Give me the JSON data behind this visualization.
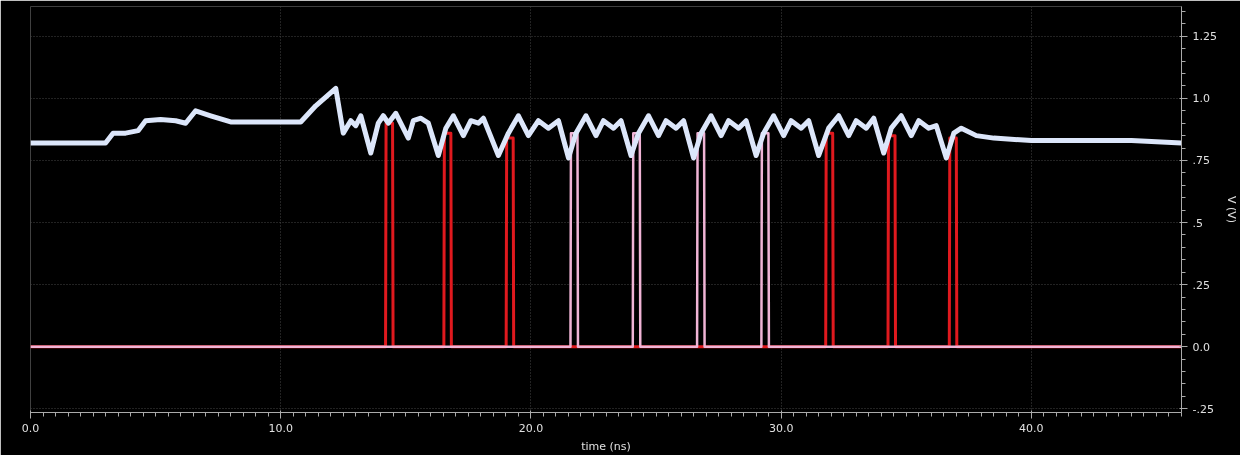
{
  "chart_data": {
    "type": "line",
    "xlabel": "time (ns)",
    "ylabel": "V (V)",
    "xlim": [
      0,
      46
    ],
    "ylim": [
      -0.265,
      1.37
    ],
    "xticks": [
      {
        "value": 0,
        "label": "0.0"
      },
      {
        "value": 10,
        "label": "10.0"
      },
      {
        "value": 20,
        "label": "20.0"
      },
      {
        "value": 30,
        "label": "30.0"
      },
      {
        "value": 40,
        "label": "40.0"
      }
    ],
    "yticks": [
      {
        "value": -0.25,
        "label": "-.25"
      },
      {
        "value": 0,
        "label": "0.0"
      },
      {
        "value": 0.25,
        "label": ".25"
      },
      {
        "value": 0.5,
        "label": ".5"
      },
      {
        "value": 0.75,
        "label": ".75"
      },
      {
        "value": 1.0,
        "label": "1.0"
      },
      {
        "value": 1.25,
        "label": "1.25"
      }
    ],
    "grid": true,
    "series": [
      {
        "color": "#e0191e",
        "x": [
          0,
          14.19,
          14.21,
          14.47,
          14.49,
          16.52,
          16.54,
          16.8,
          16.82,
          19.01,
          19.03,
          19.29,
          19.31,
          31.78,
          31.8,
          32.06,
          32.08,
          34.27,
          34.29,
          34.55,
          34.57,
          36.72,
          36.74,
          37.0,
          37.02,
          46
        ],
        "values": [
          0,
          0,
          0.9,
          0.9,
          0,
          0,
          0.86,
          0.86,
          0,
          0,
          0.84,
          0.84,
          0,
          0,
          0.86,
          0.86,
          0,
          0,
          0.85,
          0.85,
          0,
          0,
          0.84,
          0.84,
          0,
          0
        ]
      },
      {
        "color": "#f0b4d6",
        "x": [
          0,
          21.58,
          21.6,
          21.86,
          21.88,
          24.07,
          24.09,
          24.35,
          24.37,
          26.64,
          26.66,
          26.92,
          26.94,
          29.21,
          29.23,
          29.49,
          29.51,
          46
        ],
        "values": [
          0,
          0,
          0.86,
          0.86,
          0,
          0,
          0.86,
          0.86,
          0,
          0,
          0.86,
          0.86,
          0,
          0,
          0.86,
          0.86,
          0,
          0
        ]
      },
      {
        "color": "#dce6fa",
        "x": [
          0,
          3.0,
          3.3,
          3.8,
          4.3,
          4.6,
          5.2,
          5.8,
          6.2,
          6.6,
          7.2,
          8.0,
          10.8,
          11.4,
          12.2,
          12.5,
          12.8,
          13.0,
          13.2,
          13.6,
          13.9,
          14.1,
          14.3,
          14.6,
          15.1,
          15.3,
          15.6,
          15.9,
          16.3,
          16.6,
          16.9,
          17.3,
          17.6,
          17.9,
          18.1,
          18.7,
          19.1,
          19.5,
          19.9,
          20.3,
          20.7,
          21.1,
          21.5,
          21.8,
          22.2,
          22.6,
          22.9,
          23.3,
          23.6,
          24.0,
          24.3,
          24.7,
          25.1,
          25.4,
          25.8,
          26.1,
          26.5,
          26.8,
          27.2,
          27.6,
          27.9,
          28.3,
          28.6,
          29.0,
          29.3,
          29.7,
          30.1,
          30.4,
          30.8,
          31.1,
          31.5,
          31.9,
          32.3,
          32.7,
          33.0,
          33.4,
          33.7,
          34.1,
          34.4,
          34.8,
          35.2,
          35.5,
          35.9,
          36.2,
          36.6,
          36.9,
          37.2,
          37.8,
          38.5,
          40,
          44,
          46
        ],
        "values": [
          0.82,
          0.82,
          0.86,
          0.86,
          0.87,
          0.91,
          0.915,
          0.91,
          0.9,
          0.95,
          0.93,
          0.905,
          0.905,
          0.97,
          1.04,
          0.86,
          0.91,
          0.89,
          0.93,
          0.78,
          0.9,
          0.93,
          0.9,
          0.94,
          0.84,
          0.91,
          0.92,
          0.9,
          0.77,
          0.88,
          0.93,
          0.85,
          0.91,
          0.9,
          0.92,
          0.77,
          0.86,
          0.93,
          0.85,
          0.91,
          0.88,
          0.91,
          0.76,
          0.86,
          0.93,
          0.85,
          0.91,
          0.88,
          0.91,
          0.77,
          0.86,
          0.93,
          0.85,
          0.91,
          0.88,
          0.91,
          0.76,
          0.86,
          0.93,
          0.85,
          0.91,
          0.88,
          0.91,
          0.77,
          0.86,
          0.93,
          0.85,
          0.91,
          0.88,
          0.91,
          0.77,
          0.88,
          0.93,
          0.85,
          0.91,
          0.88,
          0.92,
          0.78,
          0.88,
          0.93,
          0.85,
          0.91,
          0.88,
          0.89,
          0.76,
          0.86,
          0.88,
          0.85,
          0.84,
          0.83,
          0.83,
          0.82
        ]
      }
    ]
  }
}
